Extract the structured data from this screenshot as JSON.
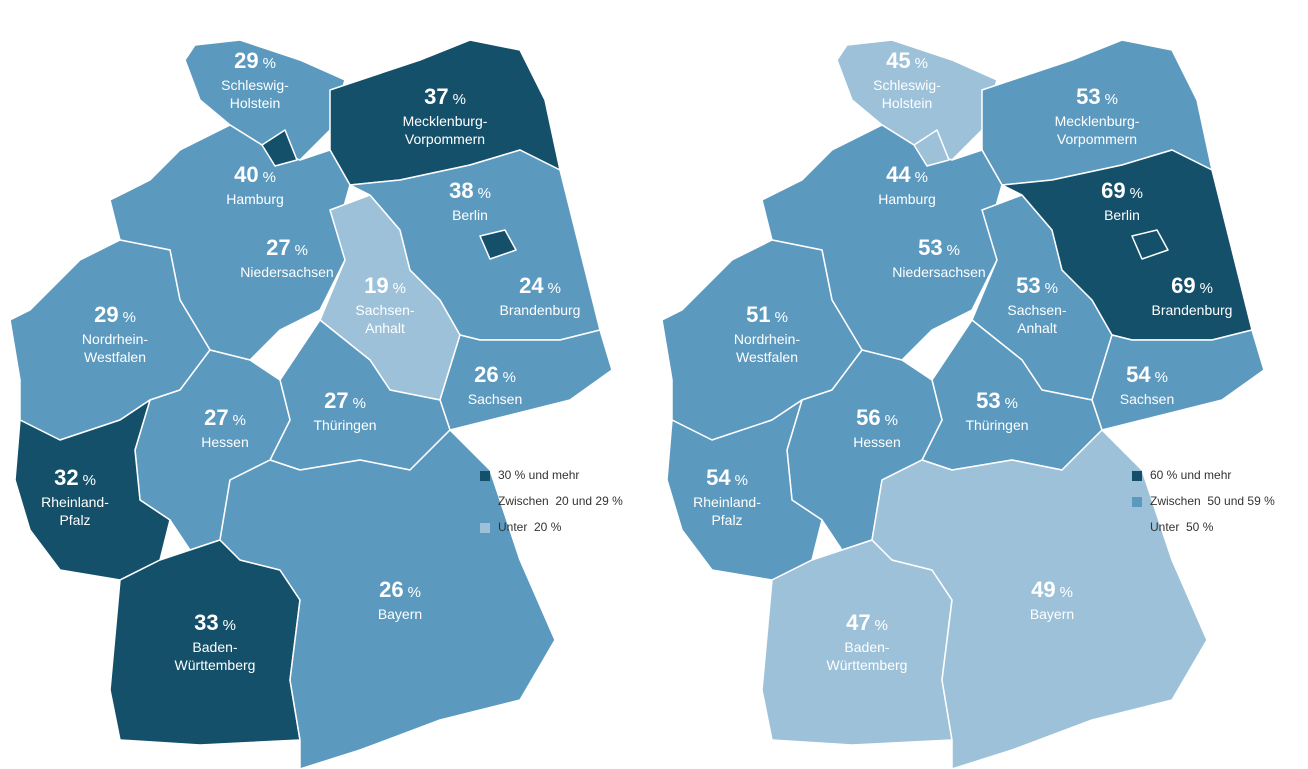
{
  "maps": [
    {
      "unit": "%",
      "regions": [
        {
          "value": 29,
          "name": [
            "Schleswig-",
            "Holstein"
          ],
          "color": "#5b99bf"
        },
        {
          "value": 37,
          "name": [
            "Mecklenburg-",
            "Vorpommern"
          ],
          "color": "#14506a"
        },
        {
          "value": 40,
          "name": [
            "Hamburg"
          ],
          "color": "#14506a"
        },
        {
          "value": 38,
          "name": [
            "Berlin"
          ],
          "color": "#14506a"
        },
        {
          "value": 27,
          "name": [
            "Niedersachsen"
          ],
          "color": "#5b99bf"
        },
        {
          "value": 19,
          "name": [
            "Sachsen-",
            "Anhalt"
          ],
          "color": "#9dc1d8"
        },
        {
          "value": 24,
          "name": [
            "Brandenburg"
          ],
          "color": "#5b99bf"
        },
        {
          "value": 29,
          "name": [
            "Nordrhein-",
            "Westfalen"
          ],
          "color": "#5b99bf"
        },
        {
          "value": 26,
          "name": [
            "Sachsen"
          ],
          "color": "#5b99bf"
        },
        {
          "value": 27,
          "name": [
            "Thüringen"
          ],
          "color": "#5b99bf"
        },
        {
          "value": 27,
          "name": [
            "Hessen"
          ],
          "color": "#5b99bf"
        },
        {
          "value": 32,
          "name": [
            "Rheinland-",
            "Pfalz"
          ],
          "color": "#14506a"
        },
        {
          "value": 33,
          "name": [
            "Baden-",
            "Württemberg"
          ],
          "color": "#14506a"
        },
        {
          "value": 26,
          "name": [
            "Bayern"
          ],
          "color": "#5b99bf"
        }
      ],
      "legend": [
        {
          "label": "30 % und mehr",
          "color": "#14506a"
        },
        {
          "label": "Zwischen  20 und 29 %",
          "color": "#5b99bf"
        },
        {
          "label": "Unter  20 %",
          "color": "#9dc1d8"
        }
      ]
    },
    {
      "unit": "%",
      "regions": [
        {
          "value": 45,
          "name": [
            "Schleswig-",
            "Holstein"
          ],
          "color": "#9dc1d8"
        },
        {
          "value": 53,
          "name": [
            "Mecklenburg-",
            "Vorpommern"
          ],
          "color": "#5b99bf"
        },
        {
          "value": 44,
          "name": [
            "Hamburg"
          ],
          "color": "#9dc1d8"
        },
        {
          "value": 69,
          "name": [
            "Berlin"
          ],
          "color": "#14506a"
        },
        {
          "value": 53,
          "name": [
            "Niedersachsen"
          ],
          "color": "#5b99bf"
        },
        {
          "value": 53,
          "name": [
            "Sachsen-",
            "Anhalt"
          ],
          "color": "#5b99bf"
        },
        {
          "value": 69,
          "name": [
            "Brandenburg"
          ],
          "color": "#14506a"
        },
        {
          "value": 51,
          "name": [
            "Nordrhein-",
            "Westfalen"
          ],
          "color": "#5b99bf"
        },
        {
          "value": 54,
          "name": [
            "Sachsen"
          ],
          "color": "#5b99bf"
        },
        {
          "value": 53,
          "name": [
            "Thüringen"
          ],
          "color": "#5b99bf"
        },
        {
          "value": 56,
          "name": [
            "Hessen"
          ],
          "color": "#5b99bf"
        },
        {
          "value": 54,
          "name": [
            "Rheinland-",
            "Pfalz"
          ],
          "color": "#5b99bf"
        },
        {
          "value": 47,
          "name": [
            "Baden-",
            "Württemberg"
          ],
          "color": "#9dc1d8"
        },
        {
          "value": 49,
          "name": [
            "Bayern"
          ],
          "color": "#9dc1d8"
        }
      ],
      "legend": [
        {
          "label": "60 % und mehr",
          "color": "#14506a"
        },
        {
          "label": "Zwischen  50 und 59 %",
          "color": "#5b99bf"
        },
        {
          "label": "Unter  50 %",
          "color": "#9dc1d8"
        }
      ]
    }
  ]
}
